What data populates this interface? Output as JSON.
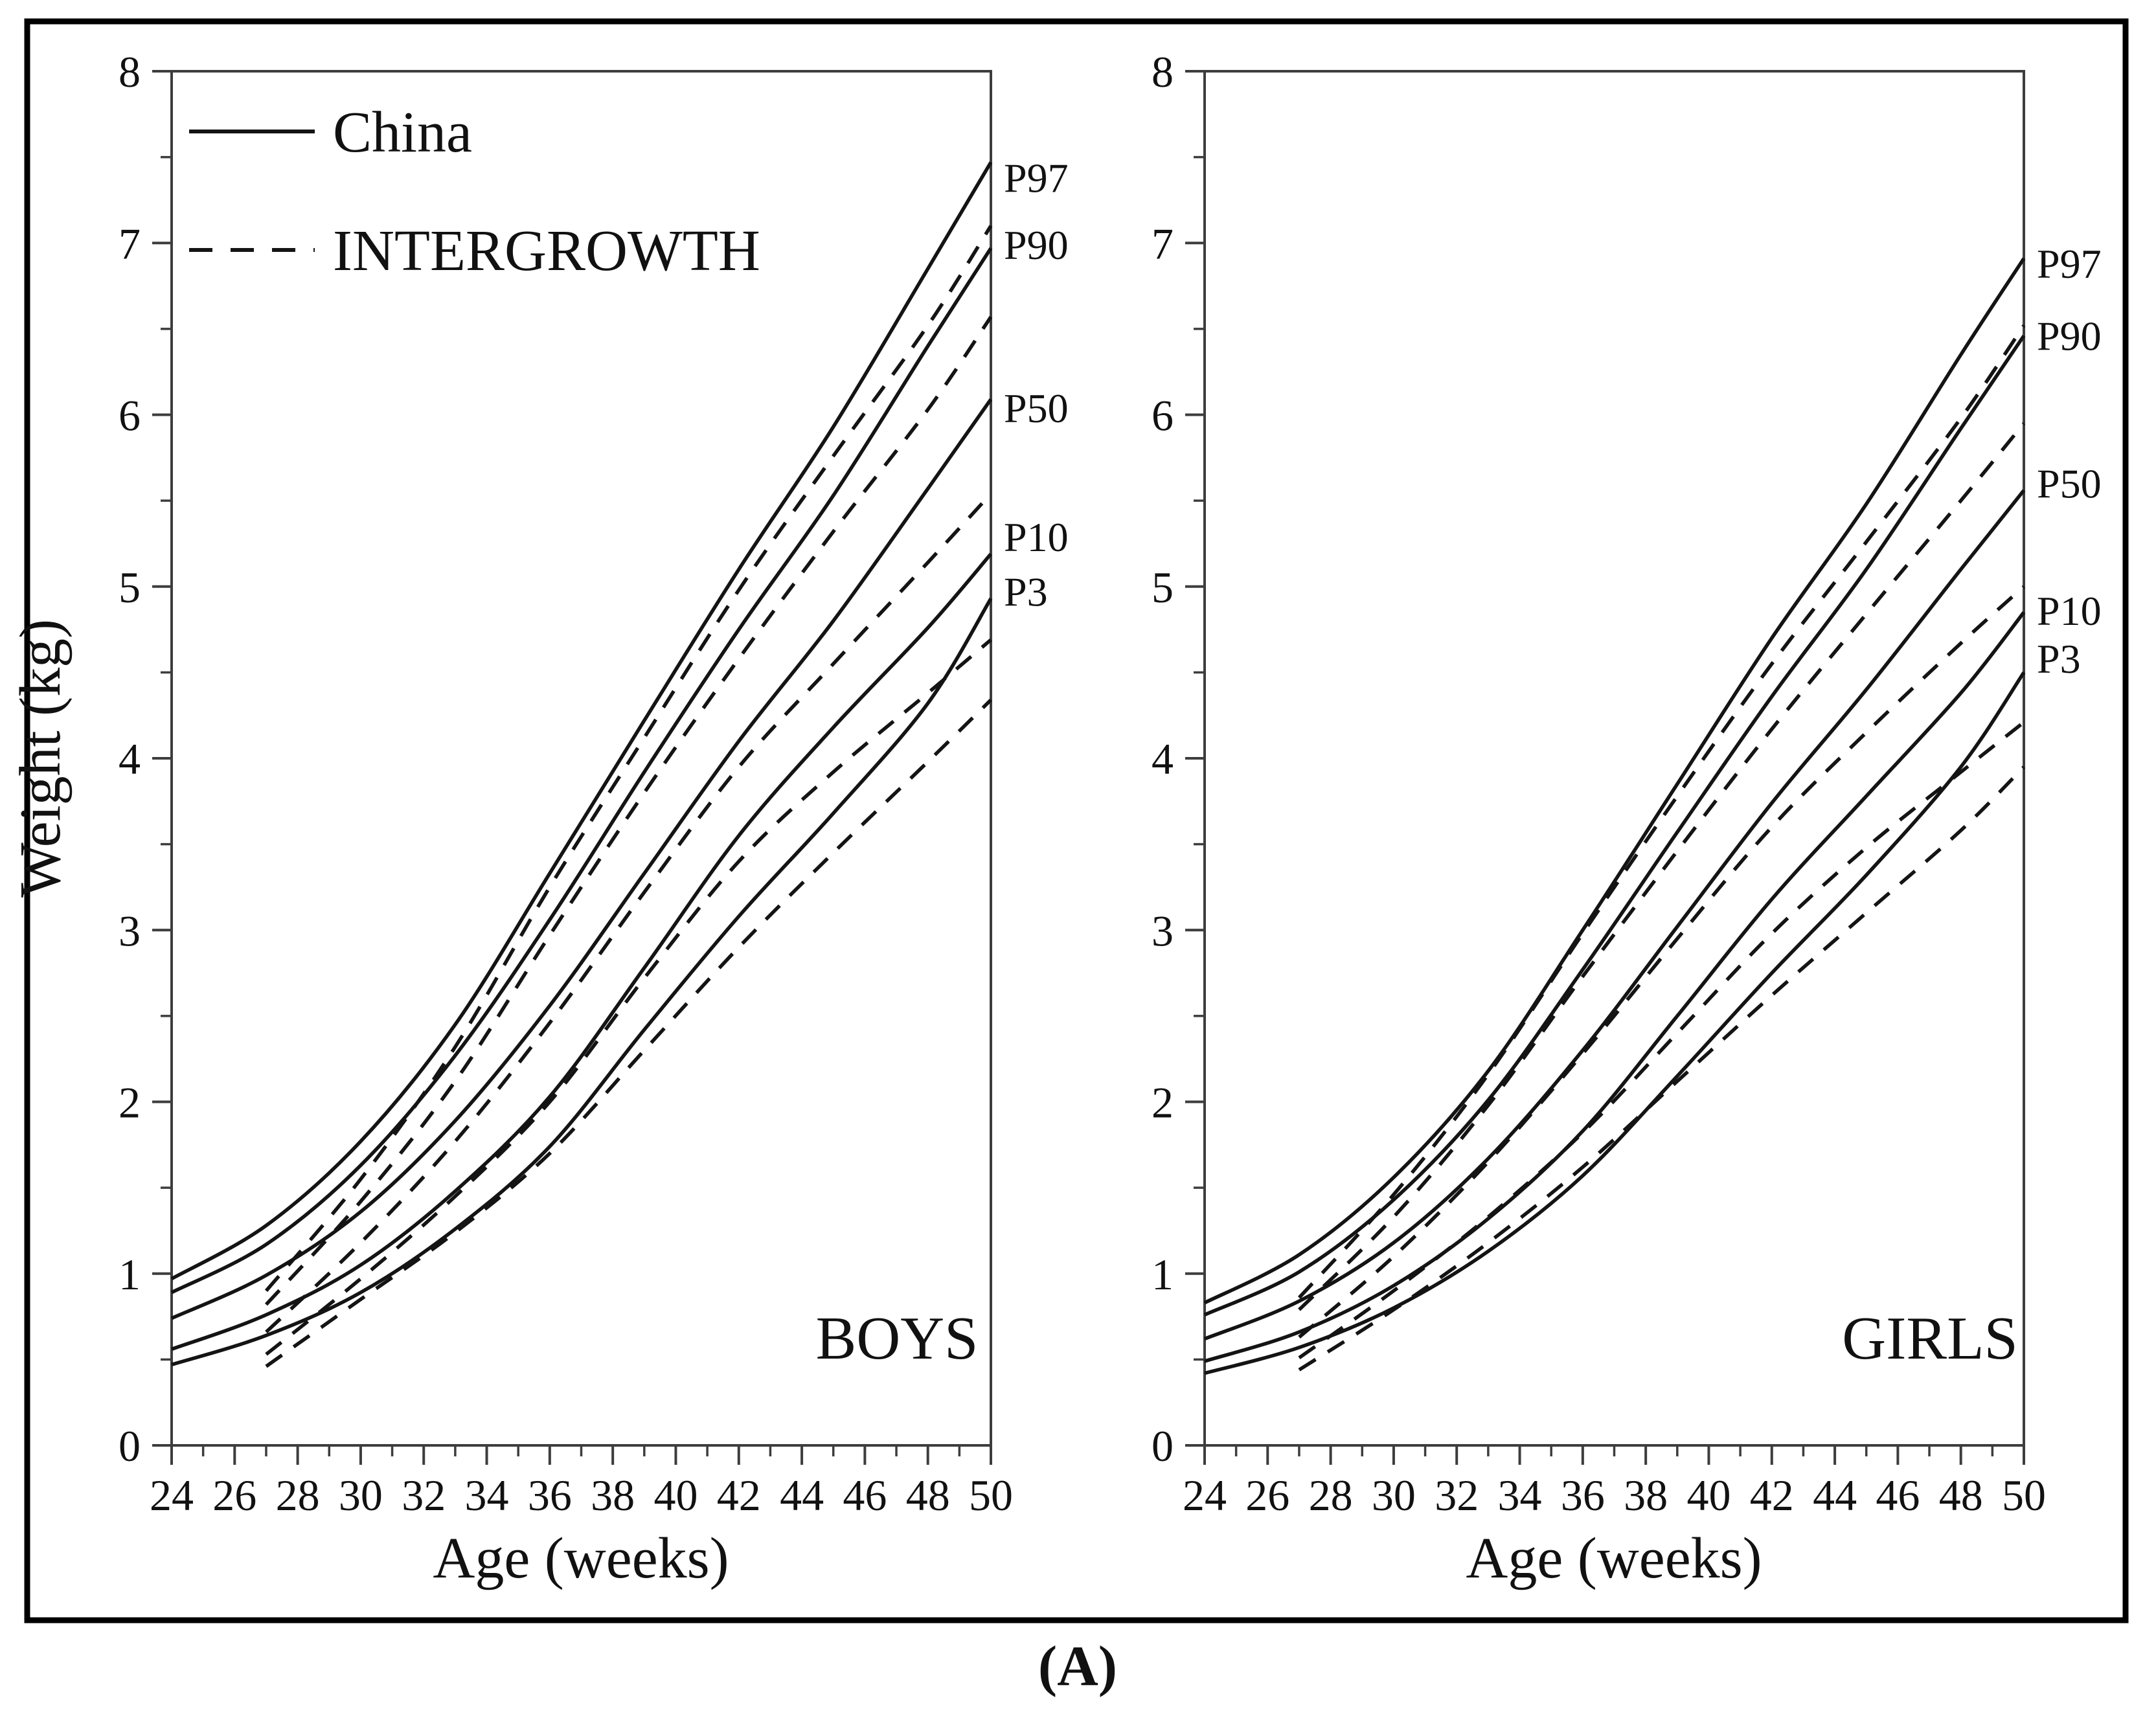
{
  "figure": {
    "caption": "(A)",
    "x_axis_label": "Age (weeks)",
    "y_axis_label": "Weight (kg)",
    "legend": {
      "solid_label": "China",
      "dashed_label": "INTERGROWTH"
    },
    "x_ticks": [
      24,
      26,
      28,
      30,
      32,
      34,
      36,
      38,
      40,
      42,
      44,
      46,
      48,
      50
    ],
    "y_ticks": [
      0,
      1,
      2,
      3,
      4,
      5,
      6,
      7,
      8
    ],
    "colors": {
      "curve": "#141414",
      "axis": "#3d3d3d",
      "frame": "#000000",
      "background": "#ffffff"
    }
  },
  "chart_data": [
    {
      "type": "line",
      "title": "BOYS",
      "xlabel": "Age (weeks)",
      "ylabel": "Weight (kg)",
      "xlim": [
        24,
        50
      ],
      "ylim": [
        0,
        8
      ],
      "grid": false,
      "legend_position": "top-left",
      "series": [
        {
          "name": "China P97",
          "source": "China",
          "percentile": "P97",
          "style": "solid",
          "points": [
            [
              24,
              0.97
            ],
            [
              27,
              1.28
            ],
            [
              30,
              1.77
            ],
            [
              33,
              2.45
            ],
            [
              36,
              3.33
            ],
            [
              39,
              4.22
            ],
            [
              42,
              5.1
            ],
            [
              45,
              5.93
            ],
            [
              48,
              6.85
            ],
            [
              50,
              7.47
            ]
          ]
        },
        {
          "name": "China P90",
          "source": "China",
          "percentile": "P90",
          "style": "solid",
          "points": [
            [
              24,
              0.89
            ],
            [
              27,
              1.17
            ],
            [
              30,
              1.63
            ],
            [
              33,
              2.27
            ],
            [
              36,
              3.06
            ],
            [
              39,
              3.92
            ],
            [
              42,
              4.75
            ],
            [
              45,
              5.53
            ],
            [
              48,
              6.4
            ],
            [
              50,
              6.97
            ]
          ]
        },
        {
          "name": "China P50",
          "source": "China",
          "percentile": "P50",
          "style": "solid",
          "points": [
            [
              24,
              0.74
            ],
            [
              27,
              0.99
            ],
            [
              30,
              1.36
            ],
            [
              33,
              1.89
            ],
            [
              36,
              2.56
            ],
            [
              39,
              3.33
            ],
            [
              42,
              4.1
            ],
            [
              45,
              4.8
            ],
            [
              48,
              5.57
            ],
            [
              50,
              6.09
            ]
          ]
        },
        {
          "name": "China P10",
          "source": "China",
          "percentile": "P10",
          "style": "solid",
          "points": [
            [
              24,
              0.56
            ],
            [
              27,
              0.76
            ],
            [
              30,
              1.05
            ],
            [
              33,
              1.48
            ],
            [
              36,
              2.03
            ],
            [
              39,
              2.78
            ],
            [
              42,
              3.55
            ],
            [
              45,
              4.18
            ],
            [
              48,
              4.76
            ],
            [
              50,
              5.19
            ]
          ]
        },
        {
          "name": "China P3",
          "source": "China",
          "percentile": "P3",
          "style": "solid",
          "points": [
            [
              24,
              0.47
            ],
            [
              27,
              0.64
            ],
            [
              30,
              0.89
            ],
            [
              33,
              1.26
            ],
            [
              36,
              1.74
            ],
            [
              39,
              2.42
            ],
            [
              42,
              3.08
            ],
            [
              45,
              3.68
            ],
            [
              48,
              4.32
            ],
            [
              50,
              4.93
            ]
          ]
        },
        {
          "name": "INTERGROWTH P97",
          "source": "INTERGROWTH",
          "percentile": "P97",
          "style": "dashed",
          "points": [
            [
              27,
              0.9
            ],
            [
              30,
              1.55
            ],
            [
              33,
              2.32
            ],
            [
              36,
              3.25
            ],
            [
              39,
              4.12
            ],
            [
              42,
              4.98
            ],
            [
              45,
              5.76
            ],
            [
              48,
              6.52
            ],
            [
              50,
              7.1
            ]
          ]
        },
        {
          "name": "INTERGROWTH P90",
          "source": "INTERGROWTH",
          "percentile": "P90",
          "style": "dashed",
          "points": [
            [
              27,
              0.82
            ],
            [
              30,
              1.42
            ],
            [
              33,
              2.12
            ],
            [
              36,
              2.97
            ],
            [
              39,
              3.8
            ],
            [
              42,
              4.58
            ],
            [
              45,
              5.32
            ],
            [
              48,
              6.03
            ],
            [
              50,
              6.57
            ]
          ]
        },
        {
          "name": "INTERGROWTH P50",
          "source": "INTERGROWTH",
          "percentile": "P50",
          "style": "dashed",
          "points": [
            [
              27,
              0.66
            ],
            [
              30,
              1.18
            ],
            [
              33,
              1.77
            ],
            [
              36,
              2.46
            ],
            [
              39,
              3.22
            ],
            [
              42,
              3.95
            ],
            [
              45,
              4.55
            ],
            [
              48,
              5.14
            ],
            [
              50,
              5.54
            ]
          ]
        },
        {
          "name": "INTERGROWTH P10",
          "source": "INTERGROWTH",
          "percentile": "P10",
          "style": "dashed",
          "points": [
            [
              27,
              0.53
            ],
            [
              30,
              0.97
            ],
            [
              33,
              1.45
            ],
            [
              36,
              2.0
            ],
            [
              39,
              2.72
            ],
            [
              42,
              3.4
            ],
            [
              45,
              3.92
            ],
            [
              48,
              4.38
            ],
            [
              50,
              4.69
            ]
          ]
        },
        {
          "name": "INTERGROWTH P3",
          "source": "INTERGROWTH",
          "percentile": "P3",
          "style": "dashed",
          "points": [
            [
              27,
              0.46
            ],
            [
              30,
              0.85
            ],
            [
              33,
              1.24
            ],
            [
              36,
              1.7
            ],
            [
              39,
              2.3
            ],
            [
              42,
              2.9
            ],
            [
              45,
              3.45
            ],
            [
              48,
              3.98
            ],
            [
              50,
              4.34
            ]
          ]
        }
      ],
      "right_labels": [
        {
          "text": "P97",
          "kg": 7.38
        },
        {
          "text": "P90",
          "kg": 6.99
        },
        {
          "text": "P50",
          "kg": 6.04
        },
        {
          "text": "P10",
          "kg": 5.29
        },
        {
          "text": "P3",
          "kg": 4.97
        }
      ]
    },
    {
      "type": "line",
      "title": "GIRLS",
      "xlabel": "Age (weeks)",
      "ylabel": "Weight (kg)",
      "xlim": [
        24,
        50
      ],
      "ylim": [
        0,
        8
      ],
      "grid": false,
      "legend_position": "none",
      "series": [
        {
          "name": "China P97",
          "source": "China",
          "percentile": "P97",
          "style": "solid",
          "points": [
            [
              24,
              0.83
            ],
            [
              27,
              1.11
            ],
            [
              30,
              1.56
            ],
            [
              33,
              2.18
            ],
            [
              36,
              3.0
            ],
            [
              39,
              3.85
            ],
            [
              42,
              4.7
            ],
            [
              45,
              5.48
            ],
            [
              48,
              6.35
            ],
            [
              50,
              6.91
            ]
          ]
        },
        {
          "name": "China P90",
          "source": "China",
          "percentile": "P90",
          "style": "solid",
          "points": [
            [
              24,
              0.76
            ],
            [
              27,
              1.01
            ],
            [
              30,
              1.43
            ],
            [
              33,
              2.01
            ],
            [
              36,
              2.77
            ],
            [
              39,
              3.57
            ],
            [
              42,
              4.36
            ],
            [
              45,
              5.1
            ],
            [
              48,
              5.92
            ],
            [
              50,
              6.46
            ]
          ]
        },
        {
          "name": "China P50",
          "source": "China",
          "percentile": "P50",
          "style": "solid",
          "points": [
            [
              24,
              0.62
            ],
            [
              27,
              0.84
            ],
            [
              30,
              1.18
            ],
            [
              33,
              1.67
            ],
            [
              36,
              2.3
            ],
            [
              39,
              3.02
            ],
            [
              42,
              3.74
            ],
            [
              45,
              4.4
            ],
            [
              48,
              5.1
            ],
            [
              50,
              5.56
            ]
          ]
        },
        {
          "name": "China P10",
          "source": "China",
          "percentile": "P10",
          "style": "solid",
          "points": [
            [
              24,
              0.49
            ],
            [
              27,
              0.66
            ],
            [
              30,
              0.93
            ],
            [
              33,
              1.32
            ],
            [
              36,
              1.83
            ],
            [
              39,
              2.5
            ],
            [
              42,
              3.18
            ],
            [
              45,
              3.78
            ],
            [
              48,
              4.38
            ],
            [
              50,
              4.85
            ]
          ]
        },
        {
          "name": "China P3",
          "source": "China",
          "percentile": "P3",
          "style": "solid",
          "points": [
            [
              24,
              0.42
            ],
            [
              27,
              0.57
            ],
            [
              30,
              0.8
            ],
            [
              33,
              1.13
            ],
            [
              36,
              1.57
            ],
            [
              39,
              2.15
            ],
            [
              42,
              2.75
            ],
            [
              45,
              3.32
            ],
            [
              48,
              3.95
            ],
            [
              50,
              4.5
            ]
          ]
        },
        {
          "name": "INTERGROWTH P97",
          "source": "INTERGROWTH",
          "percentile": "P97",
          "style": "dashed",
          "points": [
            [
              27,
              0.86
            ],
            [
              30,
              1.46
            ],
            [
              33,
              2.16
            ],
            [
              36,
              2.98
            ],
            [
              39,
              3.78
            ],
            [
              42,
              4.55
            ],
            [
              45,
              5.26
            ],
            [
              48,
              5.98
            ],
            [
              50,
              6.52
            ]
          ]
        },
        {
          "name": "INTERGROWTH P90",
          "source": "INTERGROWTH",
          "percentile": "P90",
          "style": "dashed",
          "points": [
            [
              27,
              0.79
            ],
            [
              30,
              1.33
            ],
            [
              33,
              1.98
            ],
            [
              36,
              2.73
            ],
            [
              39,
              3.46
            ],
            [
              42,
              4.17
            ],
            [
              45,
              4.84
            ],
            [
              48,
              5.5
            ],
            [
              50,
              5.95
            ]
          ]
        },
        {
          "name": "INTERGROWTH P50",
          "source": "INTERGROWTH",
          "percentile": "P50",
          "style": "dashed",
          "points": [
            [
              27,
              0.63
            ],
            [
              30,
              1.1
            ],
            [
              33,
              1.65
            ],
            [
              36,
              2.28
            ],
            [
              39,
              2.95
            ],
            [
              42,
              3.6
            ],
            [
              45,
              4.15
            ],
            [
              48,
              4.67
            ],
            [
              50,
              5.0
            ]
          ]
        },
        {
          "name": "INTERGROWTH P10",
          "source": "INTERGROWTH",
          "percentile": "P10",
          "style": "dashed",
          "points": [
            [
              27,
              0.51
            ],
            [
              30,
              0.9
            ],
            [
              33,
              1.33
            ],
            [
              36,
              1.82
            ],
            [
              39,
              2.4
            ],
            [
              42,
              2.98
            ],
            [
              45,
              3.48
            ],
            [
              48,
              3.92
            ],
            [
              50,
              4.21
            ]
          ]
        },
        {
          "name": "INTERGROWTH P3",
          "source": "INTERGROWTH",
          "percentile": "P3",
          "style": "dashed",
          "points": [
            [
              27,
              0.44
            ],
            [
              30,
              0.79
            ],
            [
              33,
              1.18
            ],
            [
              36,
              1.62
            ],
            [
              39,
              2.12
            ],
            [
              42,
              2.62
            ],
            [
              45,
              3.1
            ],
            [
              48,
              3.58
            ],
            [
              50,
              3.95
            ]
          ]
        }
      ],
      "right_labels": [
        {
          "text": "P97",
          "kg": 6.88
        },
        {
          "text": "P90",
          "kg": 6.46
        },
        {
          "text": "P50",
          "kg": 5.6
        },
        {
          "text": "P10",
          "kg": 4.86
        },
        {
          "text": "P3",
          "kg": 4.58
        }
      ]
    }
  ]
}
